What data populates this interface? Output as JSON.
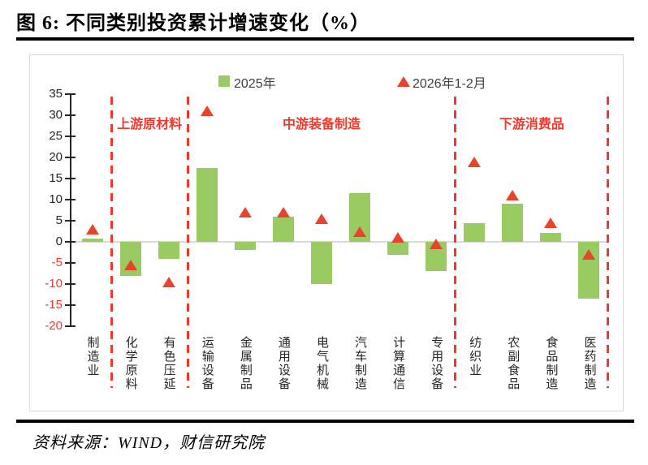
{
  "figure": {
    "title": "图 6:  不同类别投资累计增速变化（%）",
    "source": "资料来源：WIND，财信研究院"
  },
  "legend": [
    {
      "label": "2025年",
      "marker": "square-icon",
      "color": "#9acb63"
    },
    {
      "label": "2026年1-2月",
      "marker": "triangle-icon",
      "color": "#e8432c"
    }
  ],
  "chart_data": {
    "type": "bar",
    "title": "不同类别投资累计增速变化（%）",
    "categories": [
      "制造业",
      "化学原料",
      "有色压延",
      "运输设备",
      "金属制品",
      "通用设备",
      "电气机械",
      "汽车制造",
      "计算通信",
      "专用设备",
      "纺织业",
      "农副食品",
      "食品制造",
      "医药制造"
    ],
    "series": [
      {
        "name": "2025年",
        "type": "bar",
        "color": "#9acb63",
        "values": [
          0.8,
          -8,
          -4,
          17.5,
          -2,
          6,
          -10,
          11.5,
          -3,
          -7,
          4.4,
          9,
          2.2,
          -13.5
        ]
      },
      {
        "name": "2026年1-2月",
        "type": "triangle-marker",
        "color": "#e8432c",
        "values": [
          3,
          -5.5,
          -9.5,
          31,
          7,
          7,
          5.5,
          2.5,
          1,
          -0.5,
          19,
          11,
          4.6,
          -3
        ]
      }
    ],
    "sections": [
      {
        "label": "上游原材料",
        "start": 1,
        "end": 2
      },
      {
        "label": "中游装备制造",
        "start": 3,
        "end": 9
      },
      {
        "label": "下游消费品",
        "start": 10,
        "end": 13
      }
    ],
    "y_axis": {
      "ticks": [
        35,
        30,
        25,
        20,
        15,
        10,
        5,
        0,
        -5,
        -10,
        -15,
        -20
      ],
      "min": -20,
      "max": 35
    },
    "xlabel": "",
    "ylabel": "",
    "grid": "zero-line-only",
    "legend_position": "top"
  },
  "colors": {
    "bar_green": "#9acb63",
    "triangle_red": "#e8432c",
    "accent_red": "#f5372b",
    "axis_black": "#262626",
    "grid_gray": "#d9d9d9"
  }
}
